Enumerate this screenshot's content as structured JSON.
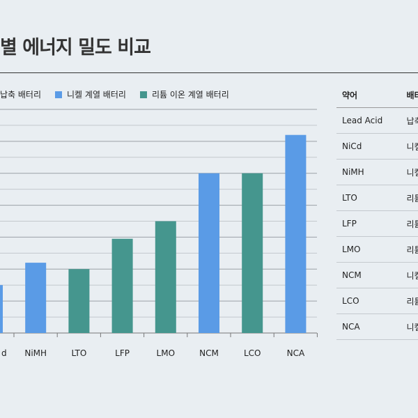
{
  "title": "별 에너지 밀도 비교",
  "colors": {
    "nickel": "#5a9be6",
    "lithium": "#45968e",
    "lead": "#e07a5f"
  },
  "legend": [
    {
      "label": "납축 배터리",
      "color": "#e07a5f"
    },
    {
      "label": "니켈 계열 배터리",
      "color": "#5a9be6"
    },
    {
      "label": "리튬 이온 계열 배터리",
      "color": "#45968e"
    }
  ],
  "chart_data": {
    "type": "bar",
    "categories": [
      "NiCd",
      "NiMH",
      "LTO",
      "LFP",
      "LMO",
      "NCM",
      "LCO",
      "NCA"
    ],
    "visible_tick_labels": [
      "d",
      "NiMH",
      "LTO",
      "LFP",
      "LMO",
      "NCM",
      "LCO",
      "NCA"
    ],
    "values": [
      60,
      88,
      80,
      118,
      140,
      200,
      200,
      248
    ],
    "groups": [
      "nickel",
      "nickel",
      "lithium",
      "lithium",
      "lithium",
      "nickel",
      "lithium",
      "nickel"
    ],
    "ylim": [
      0,
      280
    ],
    "grid": true,
    "legend_position": "top"
  },
  "table": {
    "headers": [
      "약어",
      "배터"
    ],
    "rows": [
      [
        "Lead Acid",
        "납축"
      ],
      [
        "NiCd",
        "니켈"
      ],
      [
        "NiMH",
        "니켈"
      ],
      [
        "LTO",
        "리튬"
      ],
      [
        "LFP",
        "리튬"
      ],
      [
        "LMO",
        "리튬"
      ],
      [
        "NCM",
        "니켈"
      ],
      [
        "LCO",
        "리튬"
      ],
      [
        "NCA",
        "니켈"
      ]
    ]
  }
}
